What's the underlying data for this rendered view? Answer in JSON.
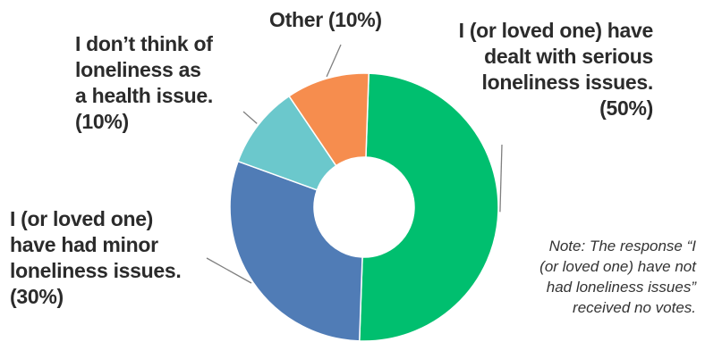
{
  "chart_data": {
    "type": "pie",
    "donut": true,
    "slices": [
      {
        "name": "I (or loved one) have dealt with serious loneliness issues.",
        "value": 50,
        "color": "#00BF6F",
        "label_lines": [
          "I (or loved one) have",
          "dealt with serious",
          "loneliness issues.",
          "(50%)"
        ]
      },
      {
        "name": "I (or loved one) have had minor loneliness issues.",
        "value": 30,
        "color": "#507CB6",
        "label_lines": [
          "I (or loved one)",
          "have had minor",
          "loneliness issues.",
          "(30%)"
        ]
      },
      {
        "name": "I don’t think of loneliness as a health issue.",
        "value": 10,
        "color": "#6BC8CC",
        "label_lines": [
          "I don’t think of",
          "loneliness as",
          "a health issue.",
          "(10%)"
        ]
      },
      {
        "name": "Other",
        "value": 10,
        "color": "#F68D4E",
        "label_lines": [
          "Other (10%)"
        ]
      }
    ],
    "note_lines": [
      "Note: The response “I",
      "(or loved one) have not",
      "had loneliness issues”",
      "received no votes."
    ]
  }
}
